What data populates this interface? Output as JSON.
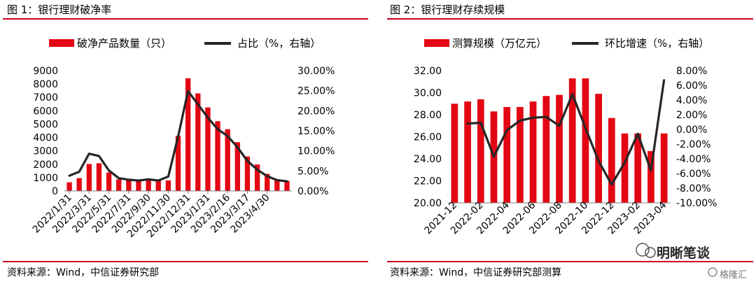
{
  "left": {
    "title": "图 1：银行理财破净率",
    "source": "资料来源：Wind，中信证券研究部"
  },
  "right": {
    "title": "图 2：银行理财存续规模",
    "source": "资料来源：Wind，中信证券研究部测算"
  },
  "watermark": {
    "name": "明晰笔谈",
    "logo": "格隆汇"
  },
  "colors": {
    "bar": "#e30613",
    "line": "#262626",
    "rule": "#c8001e"
  },
  "chart_data": [
    {
      "type": "bar",
      "legend": [
        "破净产品数量（只）",
        "占比（%，右轴）"
      ],
      "legend_position": "top",
      "x_tick_labels": [
        "2022/1/31",
        "2022/3/31",
        "2022/5/31",
        "2022/7/31",
        "2022/9/30",
        "2022/11/30",
        "2022/12/31",
        "2023/1/31",
        "2023/2/16",
        "2023/3/17",
        "2023/4/30"
      ],
      "left_axis": {
        "ticks": [
          "0",
          "1000",
          "2000",
          "3000",
          "4000",
          "5000",
          "6000",
          "7000",
          "8000",
          "9000"
        ],
        "ylim": [
          0,
          9000
        ]
      },
      "right_axis": {
        "ticks": [
          "0.00%",
          "5.00%",
          "10.00%",
          "15.00%",
          "20.00%",
          "25.00%",
          "30.00%"
        ],
        "ylim": [
          0,
          30
        ]
      },
      "series": [
        {
          "name": "破净产品数量（只）",
          "type": "bar",
          "values": [
            650,
            960,
            2020,
            2070,
            1380,
            870,
            860,
            760,
            830,
            740,
            790,
            4120,
            8430,
            7300,
            6250,
            5220,
            4620,
            3650,
            2580,
            1980,
            1280,
            880,
            760
          ]
        },
        {
          "name": "占比（%，右轴）",
          "type": "line",
          "values": [
            3.8,
            4.8,
            9.3,
            8.7,
            5.1,
            3.2,
            2.8,
            2.6,
            2.9,
            2.6,
            3.6,
            13.6,
            24.9,
            21.6,
            18.3,
            15.4,
            13.7,
            10.9,
            7.5,
            5.3,
            3.7,
            2.7,
            2.4
          ]
        }
      ]
    },
    {
      "type": "bar",
      "legend": [
        "测算规模（万亿元）",
        "环比增速（%，右轴）"
      ],
      "legend_position": "top",
      "x_tick_labels": [
        "2021-12",
        "2022-02",
        "2022-04",
        "2022-06",
        "2022-08",
        "2022-10",
        "2022-12",
        "2023-02",
        "2023-04"
      ],
      "left_axis": {
        "ticks": [
          "20.00",
          "22.00",
          "24.00",
          "26.00",
          "28.00",
          "30.00",
          "32.00"
        ],
        "ylim": [
          20,
          32
        ]
      },
      "right_axis": {
        "ticks": [
          "-10.00%",
          "-8.00%",
          "-6.00%",
          "-4.00%",
          "-2.00%",
          "0.00%",
          "2.00%",
          "4.00%",
          "6.00%",
          "8.00%"
        ],
        "ylim": [
          -10,
          8
        ]
      },
      "series": [
        {
          "name": "测算规模（万亿元）",
          "type": "bar",
          "values": [
            29.0,
            29.2,
            29.4,
            28.3,
            28.7,
            28.7,
            29.2,
            29.7,
            29.8,
            31.3,
            31.3,
            29.9,
            27.7,
            26.3,
            26.3,
            24.7,
            26.3
          ]
        },
        {
          "name": "环比增速（%，右轴）",
          "type": "line",
          "values": [
            null,
            0.8,
            0.9,
            -3.7,
            -0.1,
            1.2,
            1.6,
            1.7,
            0.5,
            4.8,
            0.2,
            -4.3,
            -7.5,
            -4.5,
            -0.6,
            -5.6,
            6.7
          ]
        }
      ]
    }
  ]
}
